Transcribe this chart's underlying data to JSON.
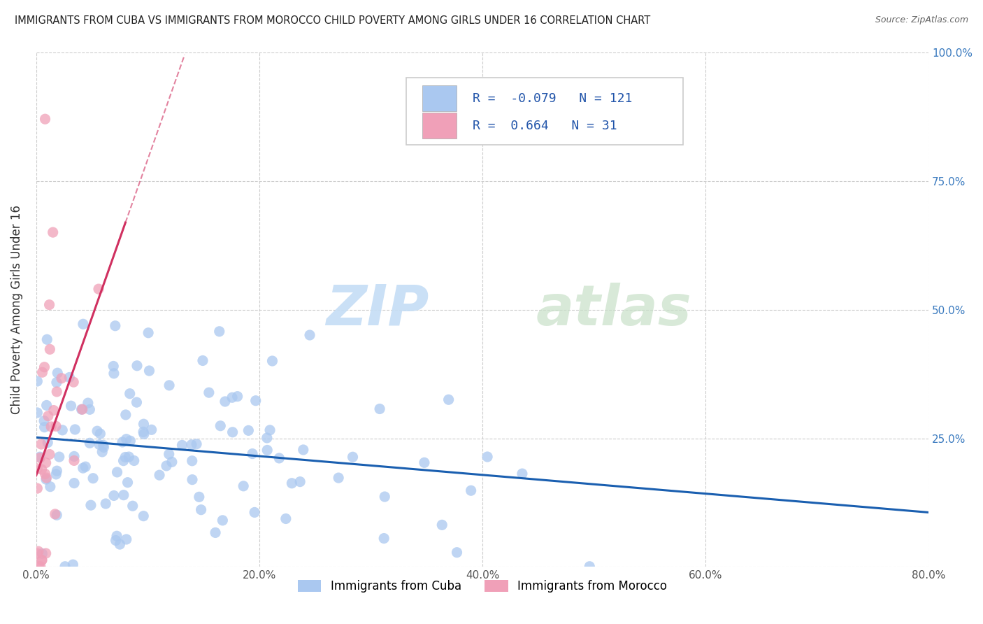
{
  "title": "IMMIGRANTS FROM CUBA VS IMMIGRANTS FROM MOROCCO CHILD POVERTY AMONG GIRLS UNDER 16 CORRELATION CHART",
  "source": "Source: ZipAtlas.com",
  "ylabel": "Child Poverty Among Girls Under 16",
  "legend_label1": "Immigrants from Cuba",
  "legend_label2": "Immigrants from Morocco",
  "R1": -0.079,
  "N1": 121,
  "R2": 0.664,
  "N2": 31,
  "color1": "#aac8f0",
  "color2": "#f0a0b8",
  "trendline1_color": "#1a5fb0",
  "trendline2_color": "#d03060",
  "watermark_zip": "ZIP",
  "watermark_atlas": "atlas",
  "xlim": [
    0.0,
    0.8
  ],
  "ylim": [
    0.0,
    1.0
  ],
  "xticks": [
    0.0,
    0.2,
    0.4,
    0.6,
    0.8
  ],
  "yticks": [
    0.0,
    0.25,
    0.5,
    0.75,
    1.0
  ],
  "xticklabels": [
    "0.0%",
    "20.0%",
    "40.0%",
    "60.0%",
    "80.0%"
  ],
  "yticklabels_right": [
    "",
    "25.0%",
    "50.0%",
    "75.0%",
    "100.0%"
  ]
}
